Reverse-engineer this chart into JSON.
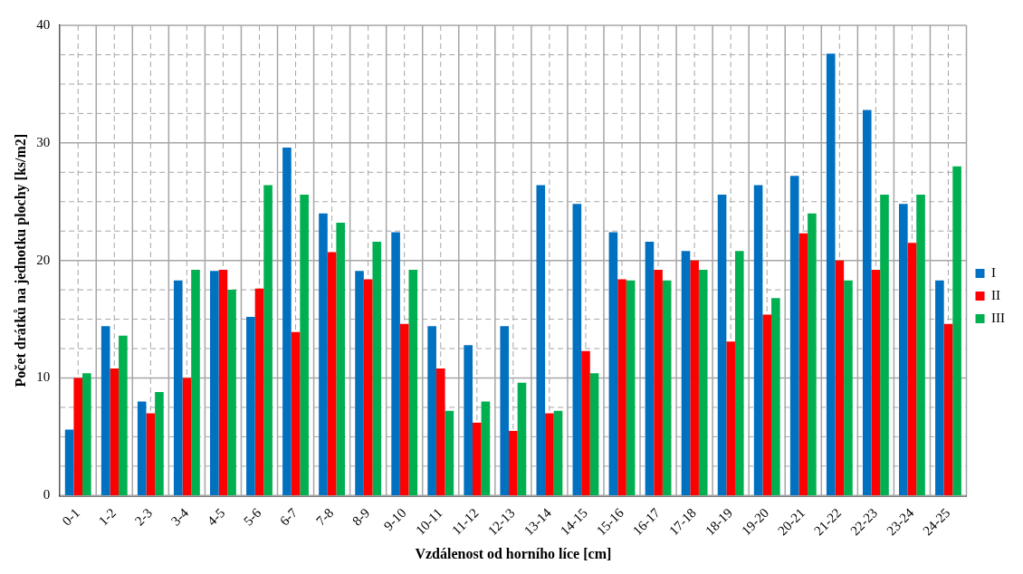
{
  "chart_data": {
    "type": "bar",
    "xlabel": "Vzdálenost od horního líce [cm]",
    "ylabel": "Počet drátků na jednotku plochy [ks/m2]",
    "categories": [
      "0-1",
      "1-2",
      "2-3",
      "3-4",
      "4-5",
      "5-6",
      "6-7",
      "7-8",
      "8-9",
      "9-10",
      "10-11",
      "11-12",
      "12-13",
      "13-14",
      "14-15",
      "15-16",
      "16-17",
      "17-18",
      "18-19",
      "19-20",
      "20-21",
      "21-22",
      "22-23",
      "23-24",
      "24-25"
    ],
    "series": [
      {
        "name": "I",
        "color": "#0070c0",
        "values": [
          5.6,
          14.4,
          8.0,
          18.3,
          19.1,
          15.2,
          29.6,
          24.0,
          19.1,
          22.4,
          14.4,
          12.8,
          14.4,
          26.4,
          24.8,
          22.4,
          21.6,
          20.8,
          25.6,
          26.4,
          27.2,
          37.6,
          32.8,
          24.8,
          18.3
        ]
      },
      {
        "name": "II",
        "color": "#ff0000",
        "values": [
          10.0,
          10.8,
          7.0,
          10.0,
          19.2,
          17.6,
          13.9,
          20.7,
          18.4,
          14.6,
          10.8,
          6.2,
          5.5,
          7.0,
          12.3,
          18.4,
          19.2,
          20.0,
          13.1,
          15.4,
          22.3,
          20.0,
          19.2,
          21.5,
          14.6
        ]
      },
      {
        "name": "III",
        "color": "#00b050",
        "values": [
          10.4,
          13.6,
          8.8,
          19.2,
          17.5,
          26.4,
          25.6,
          23.2,
          21.6,
          19.2,
          7.2,
          8.0,
          9.6,
          7.2,
          10.4,
          18.3,
          18.3,
          19.2,
          20.8,
          16.8,
          24.0,
          18.3,
          25.6,
          25.6,
          28.0
        ]
      }
    ],
    "ylim": [
      0,
      40
    ],
    "yticks": [
      0,
      {
        "value": 2.5,
        "label": null
      },
      {
        "value": 5,
        "label": null
      },
      {
        "value": 7.5,
        "label": null
      },
      10,
      {
        "value": 12.5,
        "label": null
      },
      {
        "value": 15,
        "label": null
      },
      {
        "value": 17.5,
        "label": null
      },
      20,
      {
        "value": 22.5,
        "label": null
      },
      {
        "value": 25,
        "label": null
      },
      {
        "value": 27.5,
        "label": null
      },
      30,
      {
        "value": 32.5,
        "label": null
      },
      {
        "value": 35,
        "label": null
      },
      {
        "value": 37.5,
        "label": null
      },
      40
    ],
    "grid": true,
    "legend": "right"
  }
}
